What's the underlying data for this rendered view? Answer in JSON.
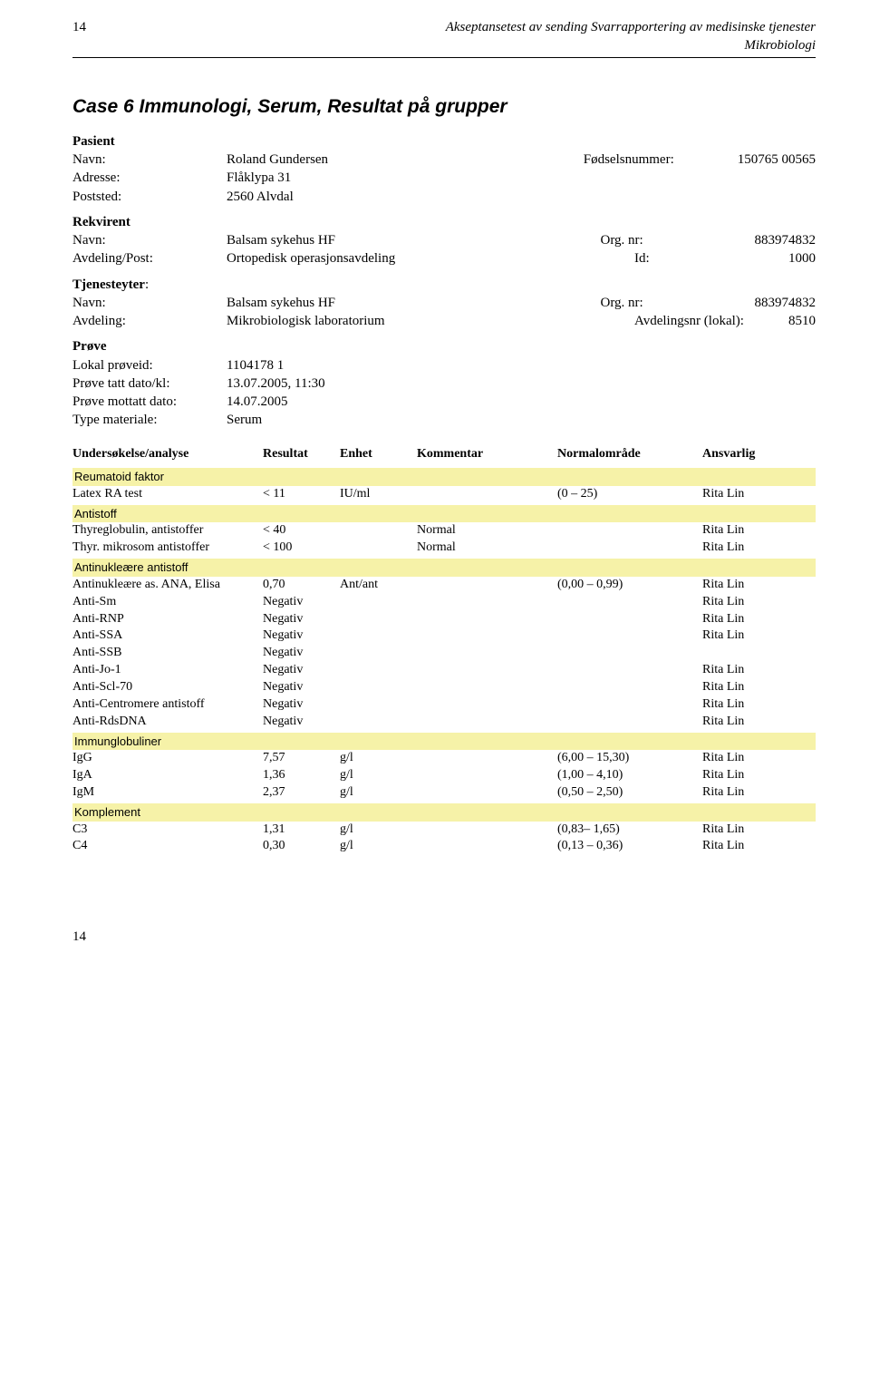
{
  "header": {
    "page_top": "14",
    "title_line1": "Akseptansetest av sending Svarrapportering av medisinske tjenester",
    "title_line2": "Mikrobiologi"
  },
  "case_title": "Case 6 Immunologi, Serum, Resultat på grupper",
  "pasient": {
    "label": "Pasient",
    "navn_k": "Navn:",
    "navn_v": "Roland Gundersen",
    "fods_k": "Fødselsnummer:",
    "fods_v": "150765 00565",
    "adr_k": "Adresse:",
    "adr_v": "Flåklypa 31",
    "post_k": "Poststed:",
    "post_v": "2560 Alvdal"
  },
  "rekvirent": {
    "label": "Rekvirent",
    "navn_k": "Navn:",
    "navn_v": "Balsam sykehus HF",
    "org_k": "Org. nr:",
    "org_v": "883974832",
    "avd_k": "Avdeling/Post:",
    "avd_v": "Ortopedisk operasjonsavdeling",
    "id_k": "Id:",
    "id_v": "1000"
  },
  "tjenesteyter": {
    "label1": "Tjenesteyter",
    "label2": ":",
    "navn_k": "Navn:",
    "navn_v": "Balsam sykehus HF",
    "org_k": "Org. nr:",
    "org_v": "883974832",
    "avd_k": "Avdeling:",
    "avd_v": "Mikrobiologisk laboratorium",
    "avdnr_k": "Avdelingsnr (lokal):",
    "avdnr_v": "8510"
  },
  "prove": {
    "label": "Prøve",
    "lp_k": "Lokal prøveid:",
    "lp_v": "1104178 1",
    "ptd_k": "Prøve tatt dato/kl:",
    "ptd_v": "13.07.2005, 11:30",
    "pmd_k": "Prøve mottatt dato:",
    "pmd_v": "14.07.2005",
    "tm_k": "Type materiale:",
    "tm_v": "Serum"
  },
  "table_headers": {
    "c1": "Undersøkelse/analyse",
    "c2": "Resultat",
    "c3": "Enhet",
    "c4": "Kommentar",
    "c5": "Normalområde",
    "c6": "Ansvarlig"
  },
  "groups": [
    {
      "name": "Reumatoid faktor",
      "rows": [
        {
          "c1": "Latex RA test",
          "c2": "< 11",
          "c3": "IU/ml",
          "c4": "",
          "c5": "(0 – 25)",
          "c6": "Rita Lin"
        }
      ]
    },
    {
      "name": "Antistoff",
      "rows": [
        {
          "c1": "Thyreglobulin, antistoffer",
          "c2": "< 40",
          "c3": "",
          "c4": "Normal",
          "c5": "",
          "c6": "Rita Lin"
        },
        {
          "c1": "Thyr. mikrosom antistoffer",
          "c2": "< 100",
          "c3": "",
          "c4": "Normal",
          "c5": "",
          "c6": "Rita Lin"
        }
      ]
    },
    {
      "name": "Antinukleære antistoff",
      "rows": [
        {
          "c1": "Antinukleære as. ANA, Elisa",
          "c2": "0,70",
          "c3": "Ant/ant",
          "c4": "",
          "c5": "(0,00 – 0,99)",
          "c6": "Rita Lin"
        },
        {
          "c1": "Anti-Sm",
          "c2": "Negativ",
          "c3": "",
          "c4": "",
          "c5": "",
          "c6": "Rita Lin"
        },
        {
          "c1": "Anti-RNP",
          "c2": "Negativ",
          "c3": "",
          "c4": "",
          "c5": "",
          "c6": "Rita Lin"
        },
        {
          "c1": "Anti-SSA",
          "c2": "Negativ",
          "c3": "",
          "c4": "",
          "c5": "",
          "c6": "Rita Lin"
        },
        {
          "c1": "Anti-SSB",
          "c2": "Negativ",
          "c3": "",
          "c4": "",
          "c5": "",
          "c6": ""
        },
        {
          "c1": "Anti-Jo-1",
          "c2": "Negativ",
          "c3": "",
          "c4": "",
          "c5": "",
          "c6": "Rita Lin"
        },
        {
          "c1": "Anti-Scl-70",
          "c2": "Negativ",
          "c3": "",
          "c4": "",
          "c5": "",
          "c6": "Rita Lin"
        },
        {
          "c1": "Anti-Centromere antistoff",
          "c2": "Negativ",
          "c3": "",
          "c4": "",
          "c5": "",
          "c6": "Rita Lin"
        },
        {
          "c1": "Anti-RdsDNA",
          "c2": "Negativ",
          "c3": "",
          "c4": "",
          "c5": "",
          "c6": "Rita Lin"
        }
      ]
    },
    {
      "name": "Immunglobuliner",
      "rows": [
        {
          "c1": "IgG",
          "c2": "7,57",
          "c3": "g/l",
          "c4": "",
          "c5": "(6,00 – 15,30)",
          "c6": "Rita Lin"
        },
        {
          "c1": "IgA",
          "c2": "1,36",
          "c3": "g/l",
          "c4": "",
          "c5": "(1,00 – 4,10)",
          "c6": "Rita Lin"
        },
        {
          "c1": "IgM",
          "c2": "2,37",
          "c3": "g/l",
          "c4": "",
          "c5": "(0,50 – 2,50)",
          "c6": "Rita Lin"
        }
      ]
    },
    {
      "name": "Komplement",
      "rows": [
        {
          "c1": "C3",
          "c2": "1,31",
          "c3": "g/l",
          "c4": "",
          "c5": "(0,83– 1,65)",
          "c6": "Rita Lin"
        },
        {
          "c1": "C4",
          "c2": "0,30",
          "c3": "g/l",
          "c4": "",
          "c5": "(0,13 – 0,36)",
          "c6": "Rita Lin"
        }
      ]
    }
  ],
  "footer_page": "14",
  "style": {
    "highlight_bg": "#f6f2a8",
    "body_bg": "#ffffff",
    "text_color": "#000000"
  }
}
